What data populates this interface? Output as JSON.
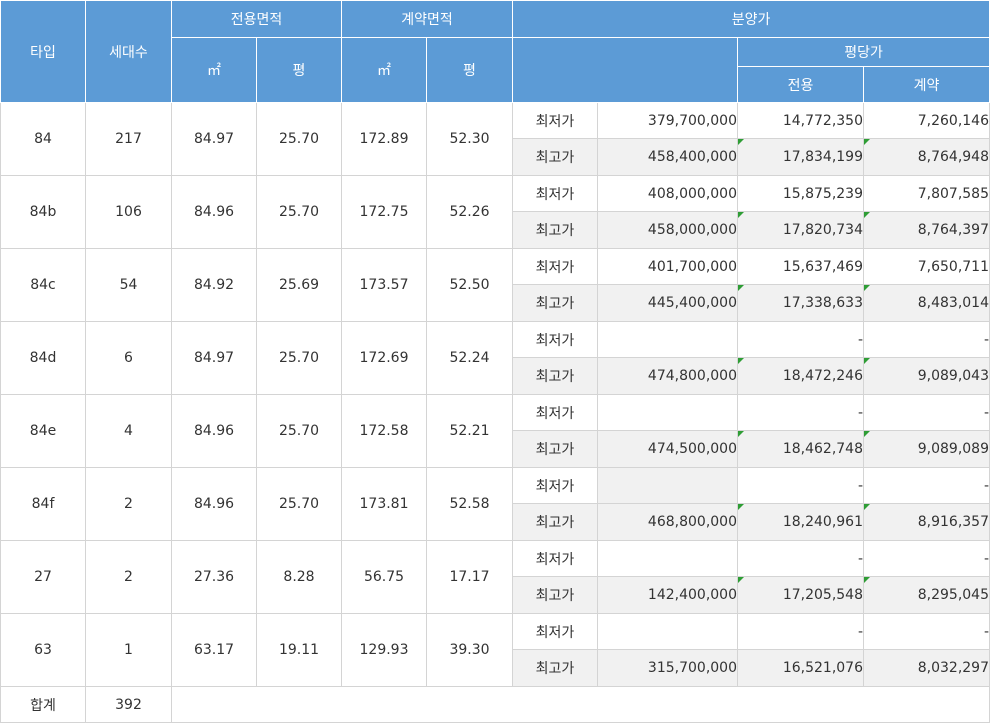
{
  "header": {
    "type": "타입",
    "households": "세대수",
    "exclusive_area": "전용면적",
    "contract_area": "계약면적",
    "sale_price": "분양가",
    "per_pyeong": "평당가",
    "sqm": "㎡",
    "pyeong": "평",
    "exclusive": "전용",
    "contract": "계약"
  },
  "labels": {
    "min": "최저가",
    "max": "최고가",
    "total": "합계"
  },
  "rows": [
    {
      "type": "84",
      "households": "217",
      "ex_sqm": "84.97",
      "ex_py": "25.70",
      "ct_sqm": "172.89",
      "ct_py": "52.30",
      "min_price": "379,700,000",
      "min_ex": "14,772,350",
      "min_ct": "7,260,146",
      "max_price": "458,400,000",
      "max_ex": "17,834,199",
      "max_ct": "8,764,948"
    },
    {
      "type": "84b",
      "households": "106",
      "ex_sqm": "84.96",
      "ex_py": "25.70",
      "ct_sqm": "172.75",
      "ct_py": "52.26",
      "min_price": "408,000,000",
      "min_ex": "15,875,239",
      "min_ct": "7,807,585",
      "max_price": "458,000,000",
      "max_ex": "17,820,734",
      "max_ct": "8,764,397"
    },
    {
      "type": "84c",
      "households": "54",
      "ex_sqm": "84.92",
      "ex_py": "25.69",
      "ct_sqm": "173.57",
      "ct_py": "52.50",
      "min_price": "401,700,000",
      "min_ex": "15,637,469",
      "min_ct": "7,650,711",
      "max_price": "445,400,000",
      "max_ex": "17,338,633",
      "max_ct": "8,483,014"
    },
    {
      "type": "84d",
      "households": "6",
      "ex_sqm": "84.97",
      "ex_py": "25.70",
      "ct_sqm": "172.69",
      "ct_py": "52.24",
      "min_price": "",
      "min_ex": "-",
      "min_ct": "-",
      "max_price": "474,800,000",
      "max_ex": "18,472,246",
      "max_ct": "9,089,043"
    },
    {
      "type": "84e",
      "households": "4",
      "ex_sqm": "84.96",
      "ex_py": "25.70",
      "ct_sqm": "172.58",
      "ct_py": "52.21",
      "min_price": "",
      "min_ex": "-",
      "min_ct": "-",
      "max_price": "474,500,000",
      "max_ex": "18,462,748",
      "max_ct": "9,089,089"
    },
    {
      "type": "84f",
      "households": "2",
      "ex_sqm": "84.96",
      "ex_py": "25.70",
      "ct_sqm": "173.81",
      "ct_py": "52.58",
      "min_price": "",
      "min_ex": "-",
      "min_ct": "-",
      "max_price": "468,800,000",
      "max_ex": "18,240,961",
      "max_ct": "8,916,357"
    },
    {
      "type": "27",
      "households": "2",
      "ex_sqm": "27.36",
      "ex_py": "8.28",
      "ct_sqm": "56.75",
      "ct_py": "17.17",
      "min_price": "",
      "min_ex": "-",
      "min_ct": "-",
      "max_price": "142,400,000",
      "max_ex": "17,205,548",
      "max_ct": "8,295,045"
    },
    {
      "type": "63",
      "households": "1",
      "ex_sqm": "63.17",
      "ex_py": "19.11",
      "ct_sqm": "129.93",
      "ct_py": "39.30",
      "min_price": "",
      "min_ex": "-",
      "min_ct": "-",
      "max_price": "315,700,000",
      "max_ex": "16,521,076",
      "max_ct": "8,032,297"
    }
  ],
  "total": {
    "households": "392"
  },
  "colors": {
    "header_bg": "#5c9bd6",
    "header_text": "#ffffff",
    "alt_row_bg": "#f1f1f1",
    "border": "#d4d4d4",
    "comment_marker": "#2e9d35"
  }
}
